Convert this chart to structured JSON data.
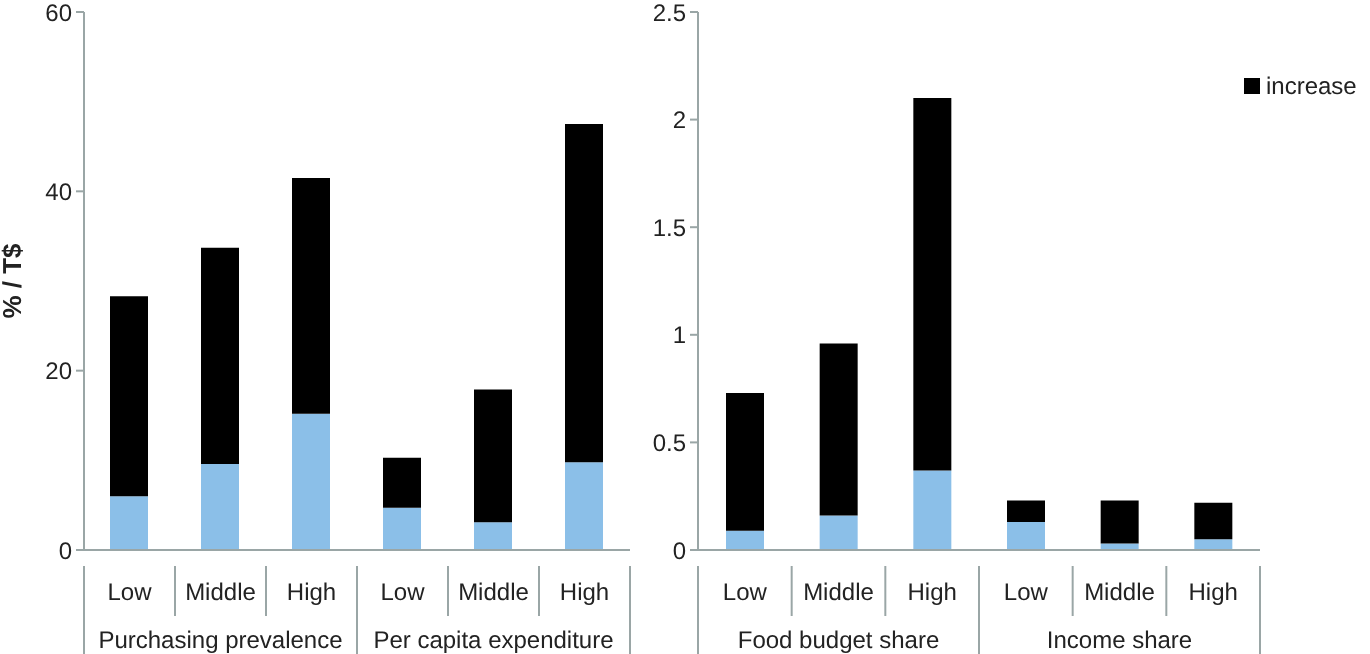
{
  "chart_data": [
    {
      "type": "bar",
      "stacked": true,
      "ylabel": "% / T$",
      "categories": [
        "Low",
        "Middle",
        "High",
        "Low",
        "Middle",
        "High"
      ],
      "annotations": [
        "Purchasing prevalence",
        "Per capita expenditure"
      ],
      "ylim": [
        0,
        60
      ],
      "yticks": [
        0,
        20,
        40,
        60
      ],
      "grid": false,
      "series": [
        {
          "color": "#8bbfe8",
          "values": [
            6.0,
            9.6,
            15.2,
            4.7,
            3.1,
            9.8
          ]
        },
        {
          "color": "#000000",
          "values": [
            22.3,
            24.1,
            26.3,
            5.6,
            14.8,
            37.7
          ]
        }
      ]
    },
    {
      "type": "bar",
      "stacked": true,
      "categories": [
        "Low",
        "Middle",
        "High",
        "Low",
        "Middle",
        "High"
      ],
      "annotations": [
        "Food budget share",
        "Income share"
      ],
      "ylim": [
        0,
        2.5
      ],
      "yticks": [
        0,
        0.5,
        1,
        1.5,
        2,
        2.5
      ],
      "grid": false,
      "legend": "top right",
      "series": [
        {
          "color": "#8bbfe8",
          "values": [
            0.09,
            0.16,
            0.37,
            0.13,
            0.03,
            0.05
          ]
        },
        {
          "name": "increase",
          "color": "#000000",
          "values": [
            0.64,
            0.8,
            1.73,
            0.1,
            0.2,
            0.17
          ]
        }
      ]
    }
  ]
}
